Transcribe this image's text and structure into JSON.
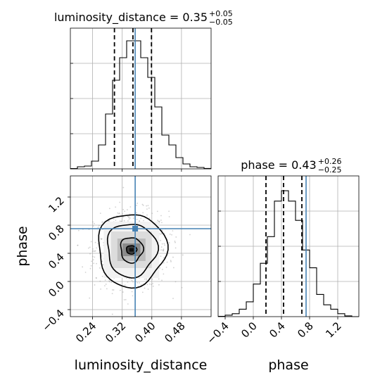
{
  "chart_data": {
    "type": "corner",
    "parameters": [
      "luminosity_distance",
      "phase"
    ],
    "truth_color": "#4682b4",
    "truths": {
      "luminosity_distance": 0.355,
      "phase": 0.75
    },
    "titles": [
      {
        "parameter": "luminosity_distance",
        "label": "luminosity_distance = 0.35",
        "plus": "+0.05",
        "minus": "−0.05"
      },
      {
        "parameter": "phase",
        "label": "phase = 0.43",
        "plus": "+0.26",
        "minus": "−0.25"
      }
    ],
    "axis_labels": {
      "x_left": "luminosity_distance",
      "x_right": "phase",
      "y_left": "phase"
    },
    "luminosity_distance": {
      "xlim": [
        0.18,
        0.56
      ],
      "xticks": [
        0.24,
        0.32,
        0.4,
        0.48
      ],
      "xtick_labels": [
        "0.24",
        "0.32",
        "0.40",
        "0.48"
      ],
      "quantiles": [
        0.299,
        0.349,
        0.399
      ],
      "hist_bins": [
        0.18,
        0.199,
        0.218,
        0.237,
        0.256,
        0.275,
        0.294,
        0.313,
        0.332,
        0.351,
        0.37,
        0.389,
        0.408,
        0.427,
        0.446,
        0.465,
        0.484,
        0.503,
        0.522,
        0.541,
        0.56
      ],
      "hist_counts": [
        0.2,
        1.5,
        2,
        5.5,
        17,
        39,
        63,
        79,
        91,
        91,
        79,
        65,
        44,
        24,
        17,
        8,
        3.5,
        1.5,
        1,
        0.3
      ],
      "hist_ymax": 100
    },
    "phase": {
      "xlim": [
        -0.5,
        1.5
      ],
      "xticks": [
        -0.4,
        0.0,
        0.4,
        0.8,
        1.2
      ],
      "xtick_labels": [
        "−0.4",
        "0.0",
        "0.4",
        "0.8",
        "1.2"
      ],
      "ylim": [
        -0.5,
        1.5
      ],
      "yticks": [
        -0.4,
        0.0,
        0.4,
        0.8,
        1.2
      ],
      "ytick_labels": [
        "−0.4",
        "0.0",
        "0.4",
        "0.8",
        "1.2"
      ],
      "quantiles": [
        0.18,
        0.43,
        0.69
      ],
      "hist_bins": [
        -0.5,
        -0.4,
        -0.3,
        -0.2,
        -0.1,
        0.0,
        0.1,
        0.2,
        0.3,
        0.4,
        0.5,
        0.6,
        0.7,
        0.8,
        0.9,
        1.0,
        1.1,
        1.2,
        1.3,
        1.4,
        1.5
      ],
      "hist_counts": [
        0.2,
        1,
        2,
        5,
        10,
        22,
        36,
        54,
        78,
        85,
        78,
        65,
        45,
        33,
        15,
        8,
        5,
        2,
        0.5,
        0
      ],
      "hist_ymax": 95
    },
    "density_2d": {
      "center": [
        0.345,
        0.45
      ],
      "contour_levels": [
        {
          "half_width_x": 0.048,
          "half_width_y": 0.075
        },
        {
          "half_width_x": 0.028,
          "half_width_y": 0.045
        },
        {
          "half_width_x": 0.014,
          "half_width_y": 0.025
        }
      ],
      "outer_contours": [
        {
          "half_width_x": 0.067,
          "half_width_y": 0.38
        },
        {
          "half_width_x": 0.092,
          "half_width_y": 0.52
        }
      ]
    }
  }
}
